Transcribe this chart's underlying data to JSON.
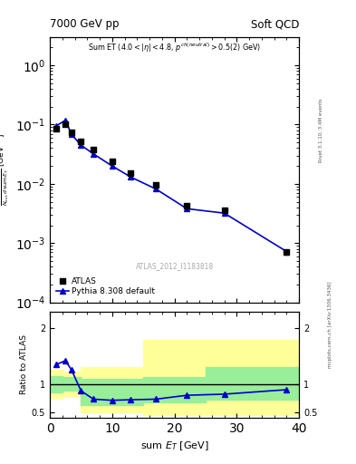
{
  "title_left": "7000 GeV pp",
  "title_right": "Soft QCD",
  "annotation": "Sum ET (4.0 < |\\u03b7| < 4.8, p^{ch(neutral)} > 0.5(2) GeV)",
  "watermark": "ATLAS_2012_I1183818",
  "right_label_top": "Rivet 3.1.10, 3.4M events",
  "right_label_bottom": "mcplots.cern.ch [arXiv:1306.3436]",
  "xlabel": "sum E_T [GeV]",
  "data_x": [
    1.0,
    2.5,
    3.5,
    5.0,
    7.0,
    10.0,
    13.0,
    17.0,
    22.0,
    28.0,
    38.0
  ],
  "data_y": [
    0.085,
    0.1,
    0.075,
    0.053,
    0.038,
    0.024,
    0.015,
    0.0095,
    0.0042,
    0.0036,
    0.00072
  ],
  "mc_x": [
    1.0,
    2.5,
    3.5,
    5.0,
    7.0,
    10.0,
    13.0,
    17.0,
    22.0,
    28.0,
    38.0
  ],
  "mc_y": [
    0.095,
    0.118,
    0.068,
    0.045,
    0.032,
    0.02,
    0.013,
    0.0082,
    0.0038,
    0.0032,
    0.00072
  ],
  "ratio_x": [
    1.0,
    2.5,
    3.5,
    5.0,
    7.0,
    10.0,
    13.0,
    17.0,
    22.0,
    28.0,
    38.0
  ],
  "ratio_y": [
    1.35,
    1.42,
    1.25,
    0.88,
    0.73,
    0.71,
    0.72,
    0.73,
    0.8,
    0.82,
    0.9
  ],
  "yellow_band_x_edges": [
    0,
    2,
    5,
    10,
    15,
    25,
    40
  ],
  "yellow_band_y_low": [
    0.75,
    0.78,
    0.5,
    0.5,
    0.45,
    0.45
  ],
  "yellow_band_y_high": [
    1.25,
    1.22,
    1.3,
    1.3,
    1.8,
    1.8
  ],
  "green_band_x_edges": [
    0,
    2,
    5,
    10,
    15,
    25,
    40
  ],
  "green_band_y_low": [
    0.85,
    0.88,
    0.62,
    0.62,
    0.68,
    0.72
  ],
  "green_band_y_high": [
    1.15,
    1.12,
    1.1,
    1.1,
    1.12,
    1.3
  ],
  "main_color": "#0000cc",
  "data_color": "#000000",
  "ylim_main": [
    0.0001,
    3.0
  ],
  "ylim_ratio": [
    0.4,
    2.3
  ],
  "ratio_yticks": [
    0.5,
    1.0,
    2.0
  ],
  "ratio_yticklabels": [
    "0.5",
    "1",
    "2"
  ],
  "xlim": [
    0,
    40
  ]
}
